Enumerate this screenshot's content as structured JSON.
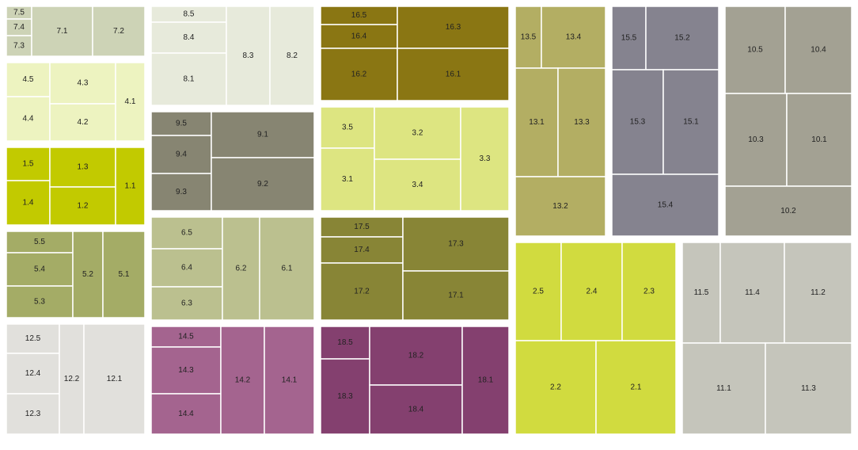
{
  "chart_data": {
    "type": "treemap",
    "title": "",
    "groups": [
      {
        "id": "7",
        "color": "#cdd3b6",
        "items": [
          {
            "label": "7.5",
            "value": 1.0
          },
          {
            "label": "7.4",
            "value": 1.2
          },
          {
            "label": "7.3",
            "value": 1.3
          },
          {
            "label": "7.1",
            "value": 4.0
          },
          {
            "label": "7.2",
            "value": 4.0
          }
        ]
      },
      {
        "id": "8",
        "color": "#e7eadb",
        "items": [
          {
            "label": "8.5",
            "value": 2.4
          },
          {
            "label": "8.4",
            "value": 3.3
          },
          {
            "label": "8.1",
            "value": 6.2
          },
          {
            "label": "8.3",
            "value": 7.2
          },
          {
            "label": "8.2",
            "value": 7.2
          }
        ]
      },
      {
        "id": "16",
        "color": "#8a7613",
        "items": [
          {
            "label": "16.5",
            "value": 2.6
          },
          {
            "label": "16.4",
            "value": 3.3
          },
          {
            "label": "16.2",
            "value": 6.5
          },
          {
            "label": "16.3",
            "value": 7.9
          },
          {
            "label": "16.1",
            "value": 10.4
          }
        ]
      },
      {
        "id": "13",
        "color": "#b3ae63",
        "items": [
          {
            "label": "13.5",
            "value": 2.8
          },
          {
            "label": "13.4",
            "value": 7.6
          },
          {
            "label": "13.1",
            "value": 7.9
          },
          {
            "label": "13.3",
            "value": 10.4
          },
          {
            "label": "13.2",
            "value": 10.5
          }
        ]
      },
      {
        "id": "15",
        "color": "#85838f",
        "items": [
          {
            "label": "15.5",
            "value": 4.0
          },
          {
            "label": "15.2",
            "value": 8.1
          },
          {
            "label": "15.3",
            "value": 8.5
          },
          {
            "label": "15.1",
            "value": 10.1
          },
          {
            "label": "15.4",
            "value": 11.1
          }
        ]
      },
      {
        "id": "10",
        "color": "#a3a193",
        "items": [
          {
            "label": "10.5",
            "value": 8.0
          },
          {
            "label": "10.4",
            "value": 8.8
          },
          {
            "label": "10.3",
            "value": 8.9
          },
          {
            "label": "10.1",
            "value": 10.3
          },
          {
            "label": "10.2",
            "value": 10.3
          }
        ]
      },
      {
        "id": "4",
        "color": "#edf3c0",
        "items": [
          {
            "label": "4.5",
            "value": 2.2
          },
          {
            "label": "4.4",
            "value": 3.6
          },
          {
            "label": "4.3",
            "value": 4.2
          },
          {
            "label": "4.2",
            "value": 4.8
          },
          {
            "label": "4.1",
            "value": 4.5
          }
        ]
      },
      {
        "id": "1",
        "color": "#c2ca00",
        "items": [
          {
            "label": "1.5",
            "value": 2.3
          },
          {
            "label": "1.4",
            "value": 3.5
          },
          {
            "label": "1.3",
            "value": 4.1
          },
          {
            "label": "1.2",
            "value": 4.7
          },
          {
            "label": "1.1",
            "value": 4.4
          }
        ]
      },
      {
        "id": "9",
        "color": "#878572",
        "items": [
          {
            "label": "9.5",
            "value": 2.2
          },
          {
            "label": "9.4",
            "value": 3.5
          },
          {
            "label": "9.3",
            "value": 4.2
          },
          {
            "label": "9.1",
            "value": 5.8
          },
          {
            "label": "9.2",
            "value": 10.0
          }
        ]
      },
      {
        "id": "3",
        "color": "#dde581",
        "items": [
          {
            "label": "3.5",
            "value": 3.4
          },
          {
            "label": "3.1",
            "value": 5.8
          },
          {
            "label": "3.2",
            "value": 7.2
          },
          {
            "label": "3.4",
            "value": 8.5
          },
          {
            "label": "3.3",
            "value": 9.4
          }
        ]
      },
      {
        "id": "5",
        "color": "#a4ac66",
        "items": [
          {
            "label": "5.5",
            "value": 2.0
          },
          {
            "label": "5.4",
            "value": 2.6
          },
          {
            "label": "5.3",
            "value": 3.5
          },
          {
            "label": "5.2",
            "value": 3.1
          },
          {
            "label": "5.1",
            "value": 4.7
          }
        ]
      },
      {
        "id": "6",
        "color": "#bbc08f",
        "items": [
          {
            "label": "6.5",
            "value": 3.1
          },
          {
            "label": "6.4",
            "value": 3.9
          },
          {
            "label": "6.3",
            "value": 3.9
          },
          {
            "label": "6.2",
            "value": 4.6
          },
          {
            "label": "6.1",
            "value": 7.7
          }
        ]
      },
      {
        "id": "17",
        "color": "#888536",
        "items": [
          {
            "label": "17.5",
            "value": 2.0
          },
          {
            "label": "17.4",
            "value": 3.4
          },
          {
            "label": "17.2",
            "value": 8.1
          },
          {
            "label": "17.3",
            "value": 8.1
          },
          {
            "label": "17.1",
            "value": 9.2
          }
        ]
      },
      {
        "id": "2",
        "color": "#d1db3f",
        "items": [
          {
            "label": "2.5",
            "value": 7.2
          },
          {
            "label": "2.4",
            "value": 9.4
          },
          {
            "label": "2.3",
            "value": 9.4
          },
          {
            "label": "2.2",
            "value": 12.4
          },
          {
            "label": "2.1",
            "value": 13.7
          }
        ]
      },
      {
        "id": "11",
        "color": "#c5c5bb",
        "items": [
          {
            "label": "11.5",
            "value": 6.0
          },
          {
            "label": "11.4",
            "value": 10.2
          },
          {
            "label": "11.2",
            "value": 11.2
          },
          {
            "label": "11.1",
            "value": 14.6
          },
          {
            "label": "11.3",
            "value": 14.6
          }
        ]
      },
      {
        "id": "12",
        "color": "#e1e0dc",
        "items": [
          {
            "label": "12.5",
            "value": 1.9
          },
          {
            "label": "12.4",
            "value": 2.9
          },
          {
            "label": "12.3",
            "value": 3.0
          },
          {
            "label": "12.2",
            "value": 4.3
          },
          {
            "label": "12.1",
            "value": 12.1
          }
        ]
      },
      {
        "id": "14",
        "color": "#a4648f",
        "items": [
          {
            "label": "14.5",
            "value": 2.5
          },
          {
            "label": "14.3",
            "value": 5.3
          },
          {
            "label": "14.4",
            "value": 5.3
          },
          {
            "label": "14.2",
            "value": 7.6
          },
          {
            "label": "14.1",
            "value": 8.1
          }
        ]
      },
      {
        "id": "18",
        "color": "#84406f",
        "items": [
          {
            "label": "18.5",
            "value": 3.2
          },
          {
            "label": "18.3",
            "value": 6.7
          },
          {
            "label": "18.2",
            "value": 8.1
          },
          {
            "label": "18.4",
            "value": 8.4
          },
          {
            "label": "18.1",
            "value": 7.2
          }
        ]
      }
    ]
  }
}
